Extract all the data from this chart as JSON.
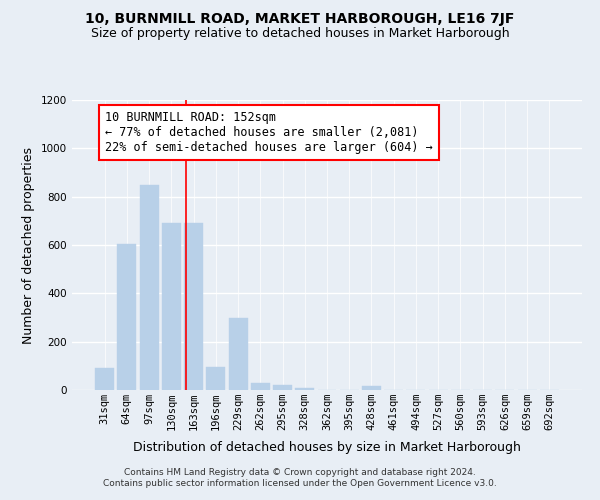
{
  "title": "10, BURNMILL ROAD, MARKET HARBOROUGH, LE16 7JF",
  "subtitle": "Size of property relative to detached houses in Market Harborough",
  "xlabel": "Distribution of detached houses by size in Market Harborough",
  "ylabel": "Number of detached properties",
  "bin_labels": [
    "31sqm",
    "64sqm",
    "97sqm",
    "130sqm",
    "163sqm",
    "196sqm",
    "229sqm",
    "262sqm",
    "295sqm",
    "328sqm",
    "362sqm",
    "395sqm",
    "428sqm",
    "461sqm",
    "494sqm",
    "527sqm",
    "560sqm",
    "593sqm",
    "626sqm",
    "659sqm",
    "692sqm"
  ],
  "bar_values": [
    90,
    605,
    850,
    690,
    690,
    95,
    300,
    30,
    20,
    10,
    0,
    0,
    15,
    0,
    0,
    0,
    0,
    0,
    0,
    0,
    0
  ],
  "bar_color": "#b8d0e8",
  "bar_edgecolor": "#b8d0e8",
  "background_color": "#e8eef5",
  "grid_color": "#ffffff",
  "vline_color": "red",
  "vline_x_index": 3.67,
  "annotation_text": "10 BURNMILL ROAD: 152sqm\n← 77% of detached houses are smaller (2,081)\n22% of semi-detached houses are larger (604) →",
  "annotation_box_color": "white",
  "annotation_box_edgecolor": "red",
  "ylim": [
    0,
    1200
  ],
  "yticks": [
    0,
    200,
    400,
    600,
    800,
    1000,
    1200
  ],
  "footer_text": "Contains HM Land Registry data © Crown copyright and database right 2024.\nContains public sector information licensed under the Open Government Licence v3.0.",
  "title_fontsize": 10,
  "subtitle_fontsize": 9,
  "xlabel_fontsize": 9,
  "ylabel_fontsize": 9,
  "tick_fontsize": 7.5,
  "annotation_fontsize": 8.5,
  "footer_fontsize": 6.5
}
